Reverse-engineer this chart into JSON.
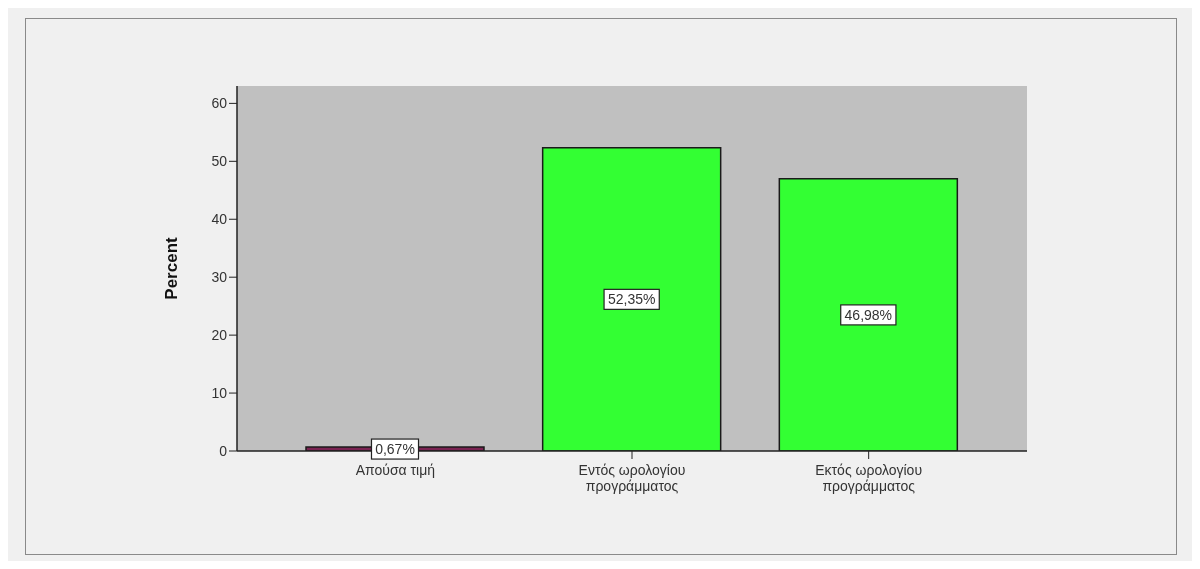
{
  "chart_data": {
    "type": "bar",
    "ylabel": "Percent",
    "categories": [
      "Απούσα τιμή",
      "Εντός ωρολογίου προγράμματος",
      "Εκτός ωρολογίου προγράμματος"
    ],
    "values": [
      0.67,
      52.35,
      46.98
    ],
    "colors": [
      "#7b2352",
      "#33ff33",
      "#33ff33"
    ],
    "value_labels": [
      "0,67%",
      "52,35%",
      "46,98%"
    ],
    "ylim": [
      0,
      63
    ],
    "yticks": [
      0,
      10,
      20,
      30,
      40,
      50,
      60
    ]
  }
}
